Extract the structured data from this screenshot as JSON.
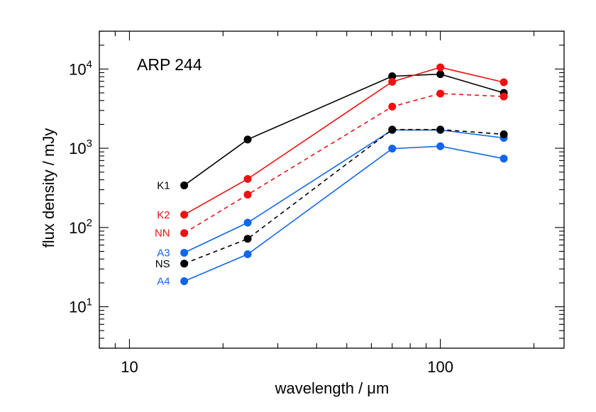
{
  "chart_data": {
    "type": "line",
    "title": "ARP 244",
    "xlabel": "wavelength / μm",
    "ylabel": "flux density / mJy",
    "xscale": "log",
    "yscale": "log",
    "xlim": [
      8,
      250
    ],
    "ylim": [
      3,
      30000
    ],
    "x_ticks": [
      {
        "value": 10,
        "label": "10"
      },
      {
        "value": 100,
        "label": "100"
      }
    ],
    "y_ticks": [
      {
        "value": 10,
        "base": "10",
        "exp": "1"
      },
      {
        "value": 100,
        "base": "10",
        "exp": "2"
      },
      {
        "value": 1000,
        "base": "10",
        "exp": "3"
      },
      {
        "value": 10000,
        "base": "10",
        "exp": "4"
      }
    ],
    "grid": false,
    "legend": "inline labels at left of series",
    "colors": {
      "black": "#000000",
      "red": "#ee1111",
      "blue": "#1166ee"
    },
    "series": [
      {
        "name": "K1",
        "color": "#000000",
        "dash": "solid",
        "x": [
          15,
          24,
          70,
          100,
          160
        ],
        "values": [
          340,
          1290,
          8100,
          8600,
          5000
        ]
      },
      {
        "name": "K2",
        "color": "#ee1111",
        "dash": "solid",
        "x": [
          15,
          24,
          70,
          100,
          160
        ],
        "values": [
          145,
          410,
          6900,
          10500,
          6800
        ]
      },
      {
        "name": "NN",
        "color": "#ee1111",
        "dash": "dashed",
        "x": [
          15,
          24,
          70,
          100,
          160
        ],
        "values": [
          85,
          260,
          3350,
          4900,
          4500
        ]
      },
      {
        "name": "A3",
        "color": "#1166ee",
        "dash": "solid",
        "x": [
          15,
          24,
          70,
          100,
          160
        ],
        "values": [
          48,
          115,
          1700,
          1700,
          1350
        ]
      },
      {
        "name": "NS",
        "color": "#000000",
        "dash": "dashed",
        "x": [
          15,
          24,
          70,
          100,
          160
        ],
        "values": [
          35,
          72,
          1720,
          1720,
          1500
        ]
      },
      {
        "name": "A4",
        "color": "#1166ee",
        "dash": "solid",
        "x": [
          15,
          24,
          70,
          100,
          160
        ],
        "values": [
          21,
          46,
          990,
          1060,
          740
        ]
      }
    ]
  }
}
